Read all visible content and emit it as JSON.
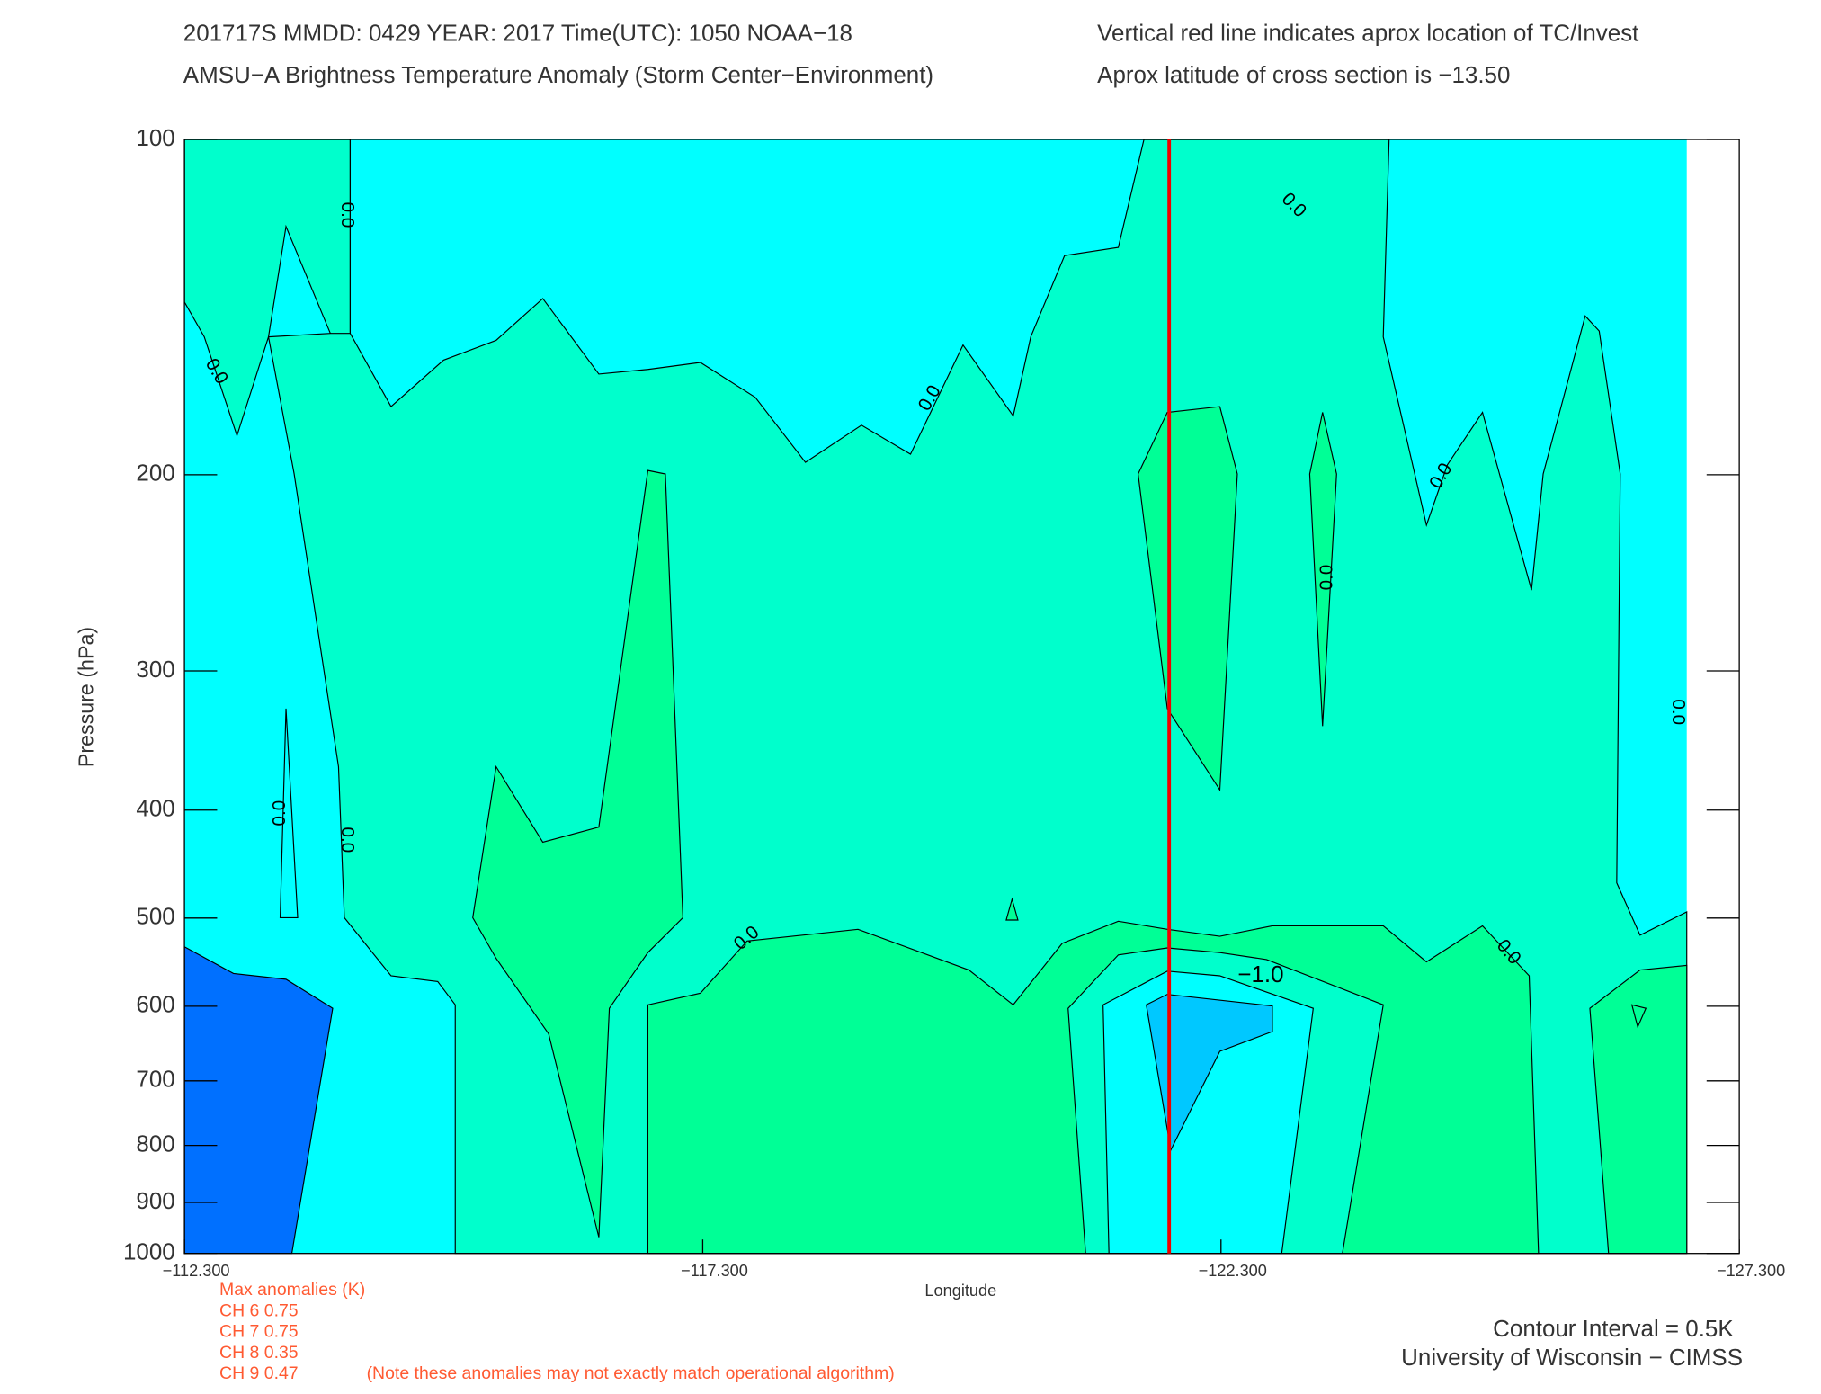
{
  "chart_data": {
    "type": "contour",
    "title": "201717S  MMDD: 0429 YEAR: 2017 Time(UTC): 1050 NOAA−18",
    "subtitle": "AMSU−A Brightness Temperature Anomaly (Storm Center−Environment)",
    "note": "Vertical red line indicates aprox location of TC/Invest",
    "latitude_note": "Aprox latitude of cross section is −13.50",
    "x_label": "Longitude",
    "y_label": "Pressure (hPa)",
    "xlim": [
      -112.3,
      -127.3
    ],
    "xticks": [
      {
        "value": -112.3,
        "label": "−112.300"
      },
      {
        "value": -117.3,
        "label": "−117.300"
      },
      {
        "value": -122.3,
        "label": "−122.300"
      },
      {
        "value": -127.3,
        "label": "−127.300"
      }
    ],
    "ylim": [
      1000,
      100
    ],
    "yscale": "log",
    "yticks": [
      100,
      200,
      300,
      400,
      500,
      600,
      700,
      800,
      900,
      1000
    ],
    "tc_longitude": -121.8,
    "marker_color": "#ee0000",
    "contour_labels": [
      "0.0",
      "0.0",
      "0.0",
      "0.0",
      "0.0",
      "0.0",
      "0.0",
      "0.0",
      "0.0",
      "0.0",
      "0.0",
      "−1.0"
    ],
    "max_anomalies_title": "Max anomalies (K)",
    "max_anomalies": [
      "CH 6  0.75",
      "CH 7  0.75",
      "CH 8  0.35",
      "CH 9  0.47"
    ],
    "anomaly_note": "(Note these anomalies may not exactly match operational algorithm)",
    "contour_interval": "Contour Interval = 0.5K",
    "credit": "University of Wisconsin − CIMSS"
  }
}
